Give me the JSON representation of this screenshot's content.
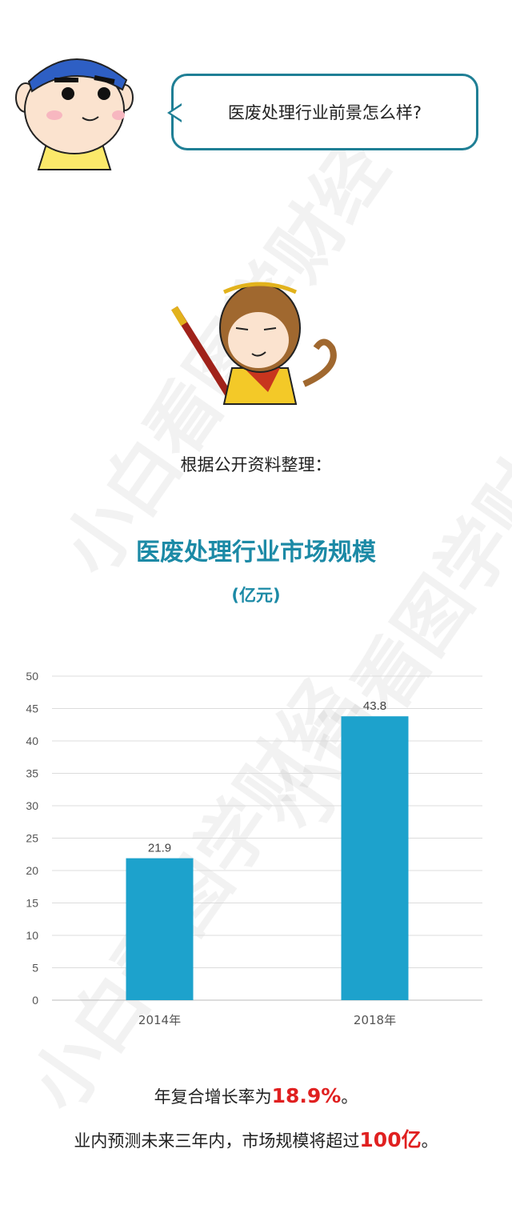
{
  "watermark": "小白看图学财经",
  "question": "医废处理行业前景怎么样?",
  "source_note": "根据公开资料整理：",
  "chart_data": {
    "type": "bar",
    "title": "医废处理行业市场规模",
    "subtitle": "(亿元)",
    "categories": [
      "2014年",
      "2018年"
    ],
    "values": [
      21.9,
      43.8
    ],
    "data_labels": [
      "21.9",
      "43.8"
    ],
    "ylim": [
      0,
      50
    ],
    "yticks": [
      0,
      5,
      10,
      15,
      20,
      25,
      30,
      35,
      40,
      45,
      50
    ],
    "grid": true,
    "bar_color": "#1da2cc"
  },
  "summary": {
    "line1_prefix": "年复合增长率为",
    "line1_highlight": "18.9%",
    "line1_suffix": "。",
    "line2_prefix": "业内预测未来三年内，市场规模将超过",
    "line2_highlight": "100亿",
    "line2_suffix": "。"
  },
  "colors": {
    "accent": "#1c8aa6",
    "highlight": "#e02020"
  }
}
